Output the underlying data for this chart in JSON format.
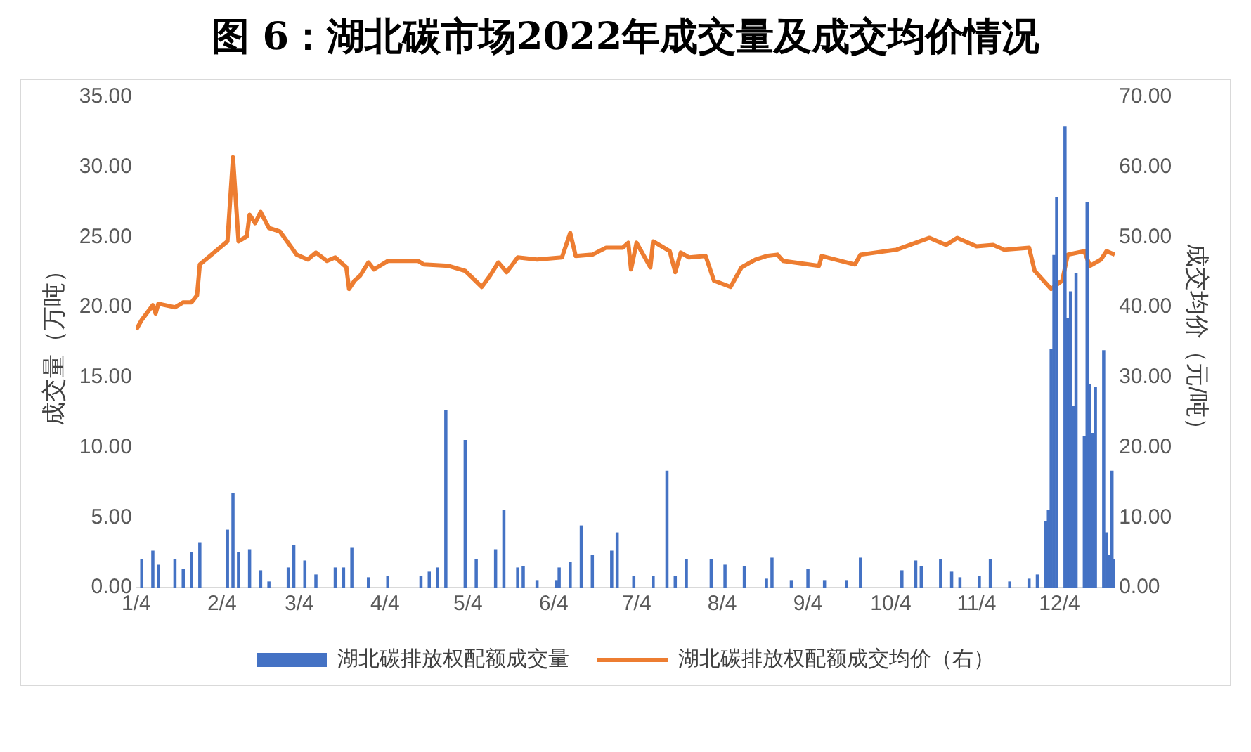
{
  "chart_data": {
    "type": "bar",
    "title": "图 6：湖北碳市场2022年成交量及成交均价情况",
    "ylabel": "成交量（万吨）",
    "y2label": "成交均价（元/吨）",
    "legend": "bottom",
    "xlim": [
      "--01-04",
      "--12-24"
    ],
    "xticks": [
      {
        "value": "--01-04",
        "label": "1/4"
      },
      {
        "value": "--02-04",
        "label": "2/4"
      },
      {
        "value": "--03-04",
        "label": "3/4"
      },
      {
        "value": "--04-04",
        "label": "4/4"
      },
      {
        "value": "--05-04",
        "label": "5/4"
      },
      {
        "value": "--06-04",
        "label": "6/4"
      },
      {
        "value": "--07-04",
        "label": "7/4"
      },
      {
        "value": "--08-04",
        "label": "8/4"
      },
      {
        "value": "--09-04",
        "label": "9/4"
      },
      {
        "value": "--10-04",
        "label": "10/4"
      },
      {
        "value": "--11-04",
        "label": "11/4"
      },
      {
        "value": "--12-04",
        "label": "12/4"
      }
    ],
    "ylim": [
      0,
      35
    ],
    "yticks": [
      {
        "value": 0,
        "label": "0.00"
      },
      {
        "value": 5,
        "label": "5.00"
      },
      {
        "value": 10,
        "label": "10.00"
      },
      {
        "value": 15,
        "label": "15.00"
      },
      {
        "value": 20,
        "label": "20.00"
      },
      {
        "value": 25,
        "label": "25.00"
      },
      {
        "value": 30,
        "label": "30.00"
      },
      {
        "value": 35,
        "label": "35.00"
      }
    ],
    "y2lim": [
      0,
      70
    ],
    "y2ticks": [
      {
        "value": 0,
        "label": "0.00"
      },
      {
        "value": 10,
        "label": "10.00"
      },
      {
        "value": 20,
        "label": "20.00"
      },
      {
        "value": 30,
        "label": "30.00"
      },
      {
        "value": 40,
        "label": "40.00"
      },
      {
        "value": 50,
        "label": "50.00"
      },
      {
        "value": 60,
        "label": "60.00"
      },
      {
        "value": 70,
        "label": "70.00"
      }
    ],
    "series": [
      {
        "name": "湖北碳排放权配额成交量",
        "color": "#4472c4",
        "x": [
          "--01-06",
          "--01-10",
          "--01-12",
          "--01-18",
          "--01-21",
          "--01-24",
          "--01-27",
          "--02-06",
          "--02-08",
          "--02-10",
          "--02-14",
          "--02-18",
          "--02-21",
          "--02-28",
          "--03-02",
          "--03-06",
          "--03-10",
          "--03-17",
          "--03-20",
          "--03-23",
          "--03-29",
          "--04-05",
          "--04-17",
          "--04-20",
          "--04-23",
          "--04-26",
          "--05-03",
          "--05-07",
          "--05-14",
          "--05-17",
          "--05-22",
          "--05-24",
          "--05-29",
          "--06-05",
          "--06-06",
          "--06-10",
          "--06-14",
          "--06-18",
          "--06-25",
          "--06-27",
          "--07-03",
          "--07-10",
          "--07-15",
          "--07-18",
          "--07-22",
          "--07-31",
          "--08-05",
          "--08-12",
          "--08-20",
          "--08-22",
          "--08-29",
          "--09-04",
          "--09-10",
          "--09-18",
          "--09-23",
          "--10-08",
          "--10-13",
          "--10-15",
          "--10-22",
          "--10-26",
          "--10-29",
          "--11-05",
          "--11-09",
          "--11-16",
          "--11-23",
          "--11-26",
          "--11-29",
          "--11-30",
          "--12-01",
          "--12-02",
          "--12-03",
          "--12-06",
          "--12-07",
          "--12-08",
          "--12-09",
          "--12-10",
          "--12-13",
          "--12-14",
          "--12-15",
          "--12-16",
          "--12-17",
          "--12-20",
          "--12-21",
          "--12-22",
          "--12-23",
          "--12-24"
        ],
        "values": [
          2.0,
          2.6,
          1.6,
          2.0,
          1.3,
          2.5,
          3.2,
          4.1,
          6.7,
          2.5,
          2.7,
          1.2,
          0.4,
          1.4,
          3.0,
          1.9,
          0.9,
          1.4,
          1.4,
          2.8,
          0.7,
          0.8,
          0.8,
          1.1,
          1.4,
          12.6,
          10.5,
          2.0,
          2.7,
          5.5,
          1.4,
          1.5,
          0.5,
          0.5,
          1.4,
          1.8,
          4.4,
          2.3,
          2.6,
          3.9,
          0.8,
          0.8,
          8.3,
          0.8,
          2.0,
          2.0,
          1.6,
          1.5,
          0.6,
          2.1,
          0.5,
          1.3,
          0.5,
          0.5,
          2.1,
          1.2,
          1.9,
          1.5,
          2.0,
          1.1,
          0.7,
          0.8,
          2.0,
          0.4,
          0.6,
          0.9,
          4.7,
          5.5,
          17.0,
          23.7,
          27.8,
          32.9,
          19.2,
          21.1,
          12.9,
          22.4,
          10.8,
          27.5,
          14.5,
          11.0,
          14.3,
          16.9,
          3.9,
          2.3,
          8.3,
          2.0
        ]
      },
      {
        "name": "湖北碳排放权配额成交均价（右）",
        "type": "line",
        "axis": "y2",
        "color": "#ed7d31",
        "x": [
          "--01-04",
          "--01-06",
          "--01-10",
          "--01-11",
          "--01-12",
          "--01-18",
          "--01-21",
          "--01-24",
          "--01-26",
          "--01-27",
          "--02-06",
          "--02-08",
          "--02-10",
          "--02-13",
          "--02-14",
          "--02-16",
          "--02-18",
          "--02-21",
          "--02-25",
          "--03-03",
          "--03-07",
          "--03-10",
          "--03-14",
          "--03-17",
          "--03-21",
          "--03-22",
          "--03-24",
          "--03-26",
          "--03-29",
          "--03-31",
          "--04-05",
          "--04-16",
          "--04-18",
          "--04-27",
          "--05-03",
          "--05-09",
          "--05-12",
          "--05-15",
          "--05-18",
          "--05-22",
          "--05-29",
          "--06-07",
          "--06-10",
          "--06-12",
          "--06-18",
          "--06-23",
          "--06-29",
          "--07-01",
          "--07-02",
          "--07-04",
          "--07-09",
          "--07-10",
          "--07-16",
          "--07-18",
          "--07-20",
          "--07-23",
          "--07-29",
          "--08-01",
          "--08-07",
          "--08-11",
          "--08-16",
          "--08-20",
          "--08-24",
          "--08-26",
          "--09-08",
          "--09-09",
          "--09-21",
          "--09-23",
          "--10-06",
          "--10-18",
          "--10-24",
          "--10-28",
          "--11-04",
          "--11-10",
          "--11-14",
          "--11-23",
          "--11-25",
          "--12-01",
          "--12-05",
          "--12-07",
          "--12-13",
          "--12-15",
          "--12-19",
          "--12-21",
          "--12-24"
        ],
        "values": [
          36.8,
          38.2,
          40.3,
          39.1,
          40.5,
          40.0,
          40.7,
          40.7,
          41.7,
          46.1,
          49.4,
          61.4,
          49.4,
          50.1,
          53.2,
          52.0,
          53.6,
          51.3,
          50.8,
          47.5,
          46.8,
          47.8,
          46.6,
          47.1,
          45.7,
          42.6,
          43.8,
          44.5,
          46.4,
          45.4,
          46.6,
          46.6,
          46.1,
          45.9,
          45.2,
          42.9,
          44.5,
          46.4,
          45.0,
          47.1,
          46.8,
          47.1,
          50.6,
          47.3,
          47.5,
          48.5,
          48.5,
          49.2,
          45.4,
          49.2,
          45.7,
          49.4,
          48.0,
          45.0,
          47.8,
          47.1,
          47.3,
          43.8,
          42.9,
          45.7,
          46.8,
          47.3,
          47.5,
          46.6,
          45.9,
          47.3,
          46.1,
          47.5,
          48.2,
          49.9,
          48.9,
          49.9,
          48.7,
          48.9,
          48.2,
          48.5,
          45.2,
          42.6,
          43.8,
          47.5,
          48.0,
          45.9,
          46.8,
          48.0,
          47.5
        ]
      }
    ]
  }
}
